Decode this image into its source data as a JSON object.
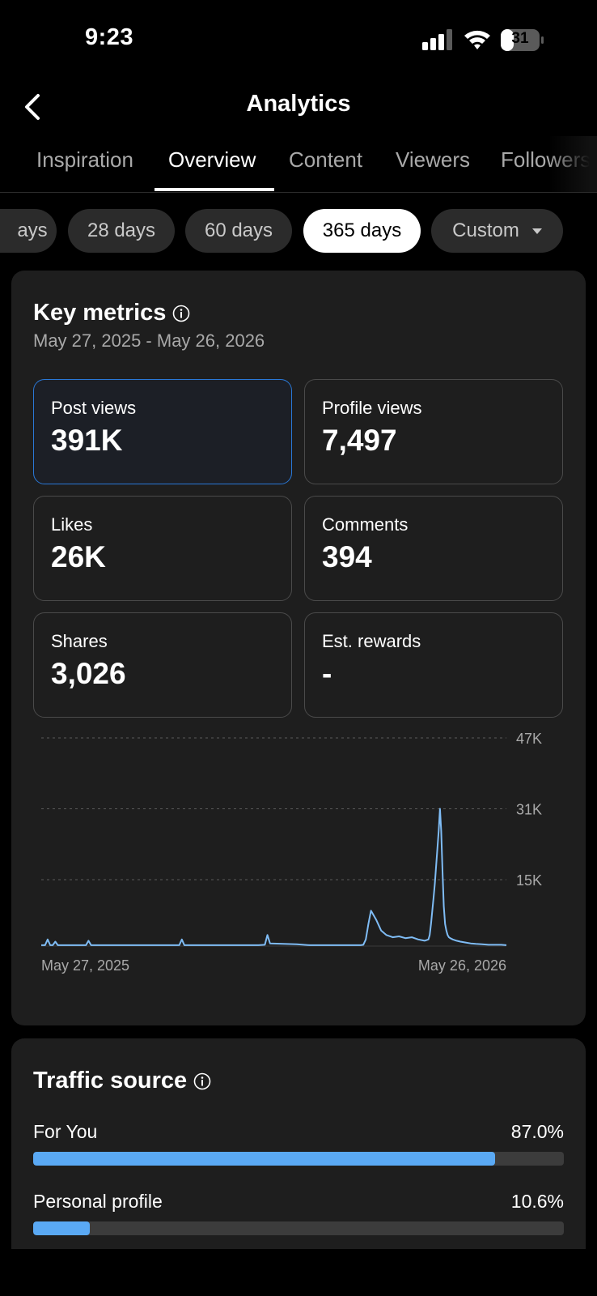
{
  "status_bar": {
    "time": "9:23",
    "battery_level": "31"
  },
  "header": {
    "title": "Analytics",
    "back_icon": "chevron-left-icon"
  },
  "tabs": [
    {
      "label": "Inspiration",
      "active": false
    },
    {
      "label": "Overview",
      "active": true
    },
    {
      "label": "Content",
      "active": false
    },
    {
      "label": "Viewers",
      "active": false
    },
    {
      "label": "Followers",
      "active": false
    }
  ],
  "periods": [
    {
      "label": "ays",
      "active": false
    },
    {
      "label": "28 days",
      "active": false
    },
    {
      "label": "60 days",
      "active": false
    },
    {
      "label": "365 days",
      "active": true
    },
    {
      "label": "Custom",
      "active": false
    }
  ],
  "key_metrics": {
    "title": "Key metrics",
    "date_range": "May 27, 2025 - May 26, 2026",
    "metrics": [
      {
        "label": "Post views",
        "value": "391K",
        "selected": true
      },
      {
        "label": "Profile views",
        "value": "7,497",
        "selected": false
      },
      {
        "label": "Likes",
        "value": "26K",
        "selected": false
      },
      {
        "label": "Comments",
        "value": "394",
        "selected": false
      },
      {
        "label": "Shares",
        "value": "3,026",
        "selected": false
      },
      {
        "label": "Est. rewards",
        "value": "-",
        "selected": false
      }
    ]
  },
  "chart_data": {
    "type": "line",
    "title": "",
    "y_ticks": [
      "47K",
      "31K",
      "15K"
    ],
    "y_tick_values": [
      47000,
      31000,
      15000
    ],
    "ylim": [
      0,
      47000
    ],
    "x_labels": [
      "May 27, 2025",
      "May 26, 2026"
    ],
    "grid": true,
    "line_color": "#7fbcf5",
    "series": [
      {
        "x": [
          0,
          3,
          5,
          7,
          9,
          11,
          13,
          35,
          37,
          39,
          60,
          80,
          100,
          108,
          110,
          112,
          120,
          125,
          130,
          140,
          150,
          160,
          170,
          175,
          177,
          179,
          200,
          210,
          230,
          245,
          250,
          252,
          254,
          256,
          258,
          262,
          266,
          270,
          275,
          280,
          285,
          290,
          295,
          300,
          303,
          304,
          305,
          306,
          307,
          308,
          309,
          310,
          311,
          312,
          313,
          314,
          315,
          316,
          317,
          318,
          319,
          320,
          322,
          325,
          328,
          332,
          336,
          340,
          345,
          350,
          355,
          360,
          364
        ],
        "y": [
          200,
          200,
          1500,
          200,
          200,
          1000,
          200,
          200,
          1200,
          200,
          200,
          200,
          200,
          200,
          1500,
          200,
          200,
          200,
          200,
          200,
          200,
          200,
          200,
          300,
          2500,
          600,
          400,
          200,
          200,
          200,
          200,
          300,
          1500,
          5000,
          8000,
          6000,
          3500,
          2500,
          2000,
          2200,
          1800,
          2000,
          1500,
          1200,
          1500,
          2500,
          5000,
          8000,
          11000,
          14000,
          18000,
          22000,
          26000,
          31000,
          26000,
          17000,
          9000,
          5000,
          3500,
          2500,
          2000,
          1800,
          1500,
          1200,
          1000,
          800,
          600,
          500,
          400,
          300,
          300,
          300,
          200
        ]
      }
    ]
  },
  "traffic_source": {
    "title": "Traffic source",
    "items": [
      {
        "label": "For You",
        "percent_text": "87.0%",
        "percent": 87.0
      },
      {
        "label": "Personal profile",
        "percent_text": "10.6%",
        "percent": 10.6
      }
    ]
  }
}
